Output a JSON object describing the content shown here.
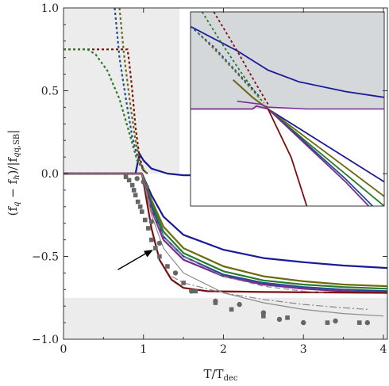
{
  "chart_data": {
    "type": "line",
    "xlabel_main": "T/T",
    "xlabel_sub": "dec",
    "ylabel_a": "(f",
    "ylabel_b": " − f",
    "ylabel_c": ")/|f",
    "ylabel_d": "|",
    "ylabel_q": "q",
    "ylabel_h": "h",
    "ylabel_qsb": "q,SB",
    "xlim": [
      0,
      4.05
    ],
    "ylim": [
      -1.0,
      1.0
    ],
    "x_ticks": [
      0,
      1,
      2,
      3,
      4
    ],
    "x_tick_labels": [
      "0",
      "1",
      "2",
      "3",
      "4"
    ],
    "y_ticks": [
      -1.0,
      -0.5,
      0.0,
      0.5,
      1.0
    ],
    "y_tick_labels": [
      "−1.0",
      "−0.5",
      "0.0",
      "0.5",
      "1.0"
    ],
    "shaded_regions": [
      {
        "x": [
          0,
          1.45
        ],
        "y": [
          0,
          1.0
        ],
        "color": "#ececec"
      },
      {
        "x": [
          0,
          4.05
        ],
        "y": [
          -1.0,
          -0.75
        ],
        "color": "#ececec"
      }
    ],
    "solid_series": [
      {
        "color": "#1a1a99",
        "width": 2.2,
        "points": [
          [
            0,
            0
          ],
          [
            0.9,
            0
          ],
          [
            0.95,
            0.12
          ],
          [
            1.0,
            0.08
          ],
          [
            1.1,
            0.03
          ],
          [
            1.3,
            0.0
          ],
          [
            1.5,
            -0.01
          ],
          [
            2.0,
            -0.01
          ],
          [
            2.5,
            -0.01
          ],
          [
            4,
            -0.01
          ]
        ]
      },
      {
        "color": "#1a1a99",
        "width": 2.2,
        "points": [
          [
            0,
            0
          ],
          [
            0.98,
            0
          ],
          [
            1.0,
            -0.02
          ],
          [
            1.1,
            -0.13
          ],
          [
            1.25,
            -0.26
          ],
          [
            1.5,
            -0.37
          ],
          [
            2.0,
            -0.46
          ],
          [
            2.5,
            -0.51
          ],
          [
            3.0,
            -0.535
          ],
          [
            3.5,
            -0.555
          ],
          [
            4.05,
            -0.57
          ]
        ]
      },
      {
        "color": "#6b6b10",
        "width": 2.2,
        "points": [
          [
            0,
            0
          ],
          [
            0.98,
            0
          ],
          [
            1.0,
            -0.02
          ],
          [
            1.1,
            -0.16
          ],
          [
            1.25,
            -0.32
          ],
          [
            1.5,
            -0.45
          ],
          [
            2.0,
            -0.56
          ],
          [
            2.5,
            -0.62
          ],
          [
            3.0,
            -0.65
          ],
          [
            3.5,
            -0.67
          ],
          [
            4.05,
            -0.68
          ]
        ]
      },
      {
        "color": "#2a7a2a",
        "width": 2.2,
        "points": [
          [
            0,
            0
          ],
          [
            0.98,
            0
          ],
          [
            1.0,
            -0.02
          ],
          [
            1.1,
            -0.18
          ],
          [
            1.25,
            -0.35
          ],
          [
            1.5,
            -0.48
          ],
          [
            2.0,
            -0.59
          ],
          [
            2.5,
            -0.645
          ],
          [
            3.0,
            -0.67
          ],
          [
            3.5,
            -0.685
          ],
          [
            4.05,
            -0.695
          ]
        ]
      },
      {
        "color": "#1f4f8f",
        "width": 2.2,
        "points": [
          [
            0,
            0
          ],
          [
            0.98,
            0
          ],
          [
            1.0,
            -0.03
          ],
          [
            1.1,
            -0.2
          ],
          [
            1.25,
            -0.38
          ],
          [
            1.5,
            -0.5
          ],
          [
            2.0,
            -0.61
          ],
          [
            2.5,
            -0.66
          ],
          [
            3.0,
            -0.685
          ],
          [
            3.5,
            -0.7
          ],
          [
            4.05,
            -0.71
          ]
        ]
      },
      {
        "color": "#7a2a90",
        "width": 2.2,
        "points": [
          [
            0,
            0
          ],
          [
            0.98,
            0
          ],
          [
            1.0,
            -0.03
          ],
          [
            1.1,
            -0.22
          ],
          [
            1.25,
            -0.4
          ],
          [
            1.5,
            -0.52
          ],
          [
            2.0,
            -0.62
          ],
          [
            2.5,
            -0.67
          ],
          [
            3.0,
            -0.695
          ],
          [
            3.5,
            -0.71
          ],
          [
            4.05,
            -0.72
          ]
        ]
      },
      {
        "color": "#7a1010",
        "width": 2.2,
        "points": [
          [
            0,
            0
          ],
          [
            0.98,
            0
          ],
          [
            1.0,
            -0.05
          ],
          [
            1.1,
            -0.33
          ],
          [
            1.2,
            -0.52
          ],
          [
            1.35,
            -0.64
          ],
          [
            1.5,
            -0.69
          ],
          [
            1.8,
            -0.71
          ],
          [
            2.5,
            -0.715
          ],
          [
            4.05,
            -0.72
          ]
        ]
      },
      {
        "color": "#8c8c8c",
        "width": 1.2,
        "points": [
          [
            0,
            0
          ],
          [
            0.98,
            0
          ],
          [
            1.0,
            -0.04
          ],
          [
            1.1,
            -0.25
          ],
          [
            1.25,
            -0.45
          ],
          [
            1.5,
            -0.6
          ],
          [
            2.0,
            -0.72
          ],
          [
            2.5,
            -0.78
          ],
          [
            3.0,
            -0.82
          ],
          [
            3.5,
            -0.845
          ],
          [
            4.0,
            -0.86
          ]
        ]
      }
    ],
    "dashed_series": [
      {
        "color": "#888888",
        "width": 1.2,
        "dash": "7,4",
        "points": [
          [
            0,
            0
          ],
          [
            0.98,
            0
          ],
          [
            1.0,
            -0.04
          ],
          [
            1.1,
            -0.22
          ],
          [
            1.25,
            -0.38
          ],
          [
            1.5,
            -0.5
          ],
          [
            2.0,
            -0.62
          ],
          [
            2.5,
            -0.68
          ],
          [
            3.0,
            -0.71
          ],
          [
            3.3,
            -0.72
          ]
        ]
      },
      {
        "color": "#888888",
        "width": 1.2,
        "dash": "9,3,2,3",
        "points": [
          [
            1.35,
            -0.62
          ],
          [
            1.5,
            -0.66
          ],
          [
            2.0,
            -0.72
          ],
          [
            2.5,
            -0.76
          ],
          [
            3.0,
            -0.79
          ],
          [
            3.5,
            -0.81
          ],
          [
            3.8,
            -0.82
          ]
        ]
      }
    ],
    "dotted_series": [
      {
        "color": "#7a1010",
        "width": 2.2,
        "dash": "3,3",
        "points": [
          [
            0,
            0.75
          ],
          [
            0.8,
            0.75
          ],
          [
            0.82,
            0.68
          ],
          [
            0.86,
            0.5
          ],
          [
            0.9,
            0.28
          ],
          [
            0.95,
            0.1
          ],
          [
            1.0,
            0.02
          ],
          [
            1.05,
            0
          ]
        ]
      },
      {
        "color": "#2a7a2a",
        "width": 2.2,
        "dash": "3,3",
        "points": [
          [
            0,
            0.75
          ],
          [
            0.3,
            0.75
          ],
          [
            0.4,
            0.72
          ],
          [
            0.55,
            0.62
          ],
          [
            0.7,
            0.45
          ],
          [
            0.82,
            0.25
          ],
          [
            0.92,
            0.08
          ],
          [
            1.0,
            0.02
          ],
          [
            1.05,
            0
          ]
        ]
      },
      {
        "color": "#1f4f8f",
        "width": 2.2,
        "dash": "3,3",
        "points": [
          [
            0.64,
            1.0
          ],
          [
            0.7,
            0.7
          ],
          [
            0.78,
            0.45
          ],
          [
            0.86,
            0.22
          ],
          [
            0.94,
            0.08
          ],
          [
            1.0,
            0.02
          ],
          [
            1.05,
            0
          ]
        ]
      },
      {
        "color": "#6b6b10",
        "width": 2.2,
        "dash": "3,3",
        "points": [
          [
            0.7,
            1.0
          ],
          [
            0.76,
            0.7
          ],
          [
            0.84,
            0.4
          ],
          [
            0.9,
            0.2
          ],
          [
            0.96,
            0.06
          ],
          [
            1.02,
            0.01
          ],
          [
            1.05,
            0
          ]
        ]
      }
    ],
    "scatter_squares": [
      [
        0.78,
        -0.02
      ],
      [
        0.82,
        -0.04
      ],
      [
        0.86,
        -0.07
      ],
      [
        0.88,
        -0.1
      ],
      [
        0.9,
        -0.13
      ],
      [
        0.93,
        -0.17
      ],
      [
        0.96,
        -0.2
      ],
      [
        0.98,
        -0.23
      ],
      [
        1.02,
        -0.28
      ],
      [
        1.06,
        -0.33
      ],
      [
        1.1,
        -0.4
      ],
      [
        1.15,
        -0.45
      ],
      [
        1.2,
        -0.5
      ],
      [
        1.3,
        -0.56
      ],
      [
        1.5,
        -0.66
      ],
      [
        1.65,
        -0.71
      ],
      [
        1.9,
        -0.78
      ],
      [
        2.1,
        -0.82
      ],
      [
        2.5,
        -0.86
      ],
      [
        2.8,
        -0.87
      ],
      [
        3.3,
        -0.9
      ],
      [
        3.7,
        -0.9
      ]
    ],
    "scatter_circles": [
      [
        1.0,
        -0.05
      ],
      [
        0.92,
        -0.03
      ],
      [
        1.04,
        -0.08
      ],
      [
        1.1,
        -0.29
      ],
      [
        1.2,
        -0.42
      ],
      [
        1.4,
        -0.6
      ],
      [
        1.6,
        -0.71
      ],
      [
        1.9,
        -0.77
      ],
      [
        2.2,
        -0.79
      ],
      [
        2.5,
        -0.84
      ],
      [
        2.7,
        -0.88
      ],
      [
        3.0,
        -0.9
      ],
      [
        3.4,
        -0.89
      ],
      [
        3.8,
        -0.9
      ]
    ],
    "scatter_color": "#666666",
    "annotation_arrow": {
      "from": [
        0.68,
        -0.58
      ],
      "to": [
        1.12,
        -0.46
      ],
      "color": "#000000"
    },
    "inset": {
      "xlim": [
        0.9,
        1.15
      ],
      "ylim": [
        -0.1,
        0.1
      ],
      "shaded": {
        "y": [
          0.0,
          0.1
        ],
        "color": "#d4d8da"
      },
      "lines": [
        {
          "color": "#1a1a99",
          "width": 1.8,
          "dash": "",
          "points": [
            [
              0.9,
              0.085
            ],
            [
              0.96,
              0.06
            ],
            [
              1.0,
              0.04
            ],
            [
              1.04,
              0.028
            ],
            [
              1.1,
              0.018
            ],
            [
              1.15,
              0.012
            ]
          ]
        },
        {
          "color": "#1a1a99",
          "width": 1.8,
          "dash": "",
          "points": [
            [
              0.955,
              0.03
            ],
            [
              0.98,
              0.012
            ],
            [
              1.0,
              0.0
            ],
            [
              1.05,
              -0.025
            ],
            [
              1.1,
              -0.05
            ],
            [
              1.15,
              -0.075
            ]
          ]
        },
        {
          "color": "#6b6b10",
          "width": 1.8,
          "dash": "",
          "points": [
            [
              0.955,
              0.03
            ],
            [
              0.98,
              0.012
            ],
            [
              1.0,
              0.0
            ],
            [
              1.05,
              -0.03
            ],
            [
              1.1,
              -0.06
            ],
            [
              1.15,
              -0.09
            ]
          ]
        },
        {
          "color": "#2a7a2a",
          "width": 1.8,
          "dash": "",
          "points": [
            [
              1.0,
              0.0
            ],
            [
              1.05,
              -0.034
            ],
            [
              1.1,
              -0.067
            ],
            [
              1.15,
              -0.1
            ]
          ]
        },
        {
          "color": "#1f4f8f",
          "width": 1.8,
          "dash": "",
          "points": [
            [
              1.0,
              0.0
            ],
            [
              1.05,
              -0.036
            ],
            [
              1.1,
              -0.072
            ],
            [
              1.135,
              -0.1
            ]
          ]
        },
        {
          "color": "#7a2a90",
          "width": 1.8,
          "dash": "",
          "points": [
            [
              0.9,
              0.0
            ],
            [
              0.98,
              0.0
            ],
            [
              0.985,
              0.003
            ],
            [
              1.0,
              0.0
            ],
            [
              1.1,
              -0.075
            ],
            [
              1.13,
              -0.1
            ]
          ]
        },
        {
          "color": "#7a2a90",
          "width": 1.5,
          "dash": "",
          "points": [
            [
              0.96,
              0.008
            ],
            [
              0.99,
              0.005
            ],
            [
              1.0,
              0.002
            ],
            [
              1.05,
              0.0
            ],
            [
              1.15,
              0.0
            ]
          ]
        },
        {
          "color": "#7a1010",
          "width": 1.8,
          "dash": "",
          "points": [
            [
              1.0,
              0.0
            ],
            [
              1.03,
              -0.05
            ],
            [
              1.05,
              -0.1
            ]
          ]
        },
        {
          "color": "#7a1010",
          "width": 1.8,
          "dash": "3,3",
          "points": [
            [
              0.93,
              0.1
            ],
            [
              0.96,
              0.06
            ],
            [
              0.985,
              0.025
            ],
            [
              1.0,
              0.005
            ]
          ]
        },
        {
          "color": "#2a7a2a",
          "width": 1.8,
          "dash": "3,3",
          "points": [
            [
              0.915,
              0.1
            ],
            [
              0.94,
              0.068
            ],
            [
              0.965,
              0.038
            ],
            [
              0.99,
              0.01
            ]
          ]
        },
        {
          "color": "#1f4f8f",
          "width": 1.8,
          "dash": "3,3",
          "points": [
            [
              0.9,
              0.085
            ],
            [
              0.93,
              0.064
            ],
            [
              0.96,
              0.038
            ],
            [
              0.99,
              0.012
            ]
          ]
        },
        {
          "color": "#6b6b10",
          "width": 1.8,
          "dash": "3,3",
          "points": [
            [
              0.91,
              0.078
            ],
            [
              0.94,
              0.054
            ],
            [
              0.97,
              0.028
            ],
            [
              0.995,
              0.006
            ]
          ]
        }
      ]
    }
  }
}
